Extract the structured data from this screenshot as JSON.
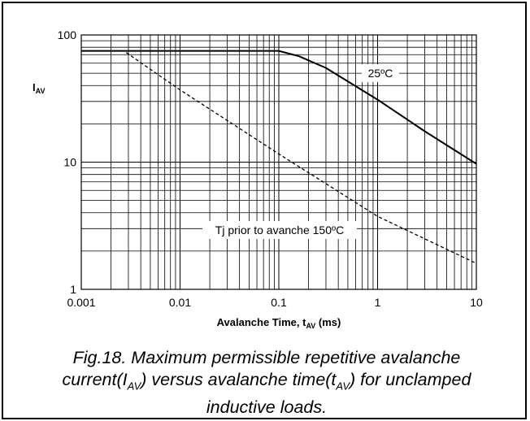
{
  "chart_data": {
    "type": "line",
    "xscale": "log",
    "yscale": "log",
    "xlim": [
      0.001,
      10
    ],
    "ylim": [
      1,
      100
    ],
    "grid": true,
    "x_ticks": [
      "0.001",
      "0.01",
      "0.1",
      "1",
      "10"
    ],
    "y_ticks": [
      "1",
      "10",
      "100"
    ],
    "ylabel": "I",
    "ylabel_sub": "AV",
    "xlabel": "Avalanche Time, t",
    "xlabel_sub": "AV",
    "xlabel_unit": " (ms)",
    "series": [
      {
        "name": "25ºC",
        "style": "solid",
        "points": [
          [
            0.001,
            75
          ],
          [
            0.1,
            75
          ],
          [
            0.16,
            68
          ],
          [
            0.3,
            55
          ],
          [
            1,
            31
          ],
          [
            3,
            17.5
          ],
          [
            10,
            9.7
          ]
        ]
      },
      {
        "name": "Tj prior to avanche 150ºC",
        "style": "dashed",
        "points": [
          [
            0.001,
            75
          ],
          [
            0.0027,
            75
          ],
          [
            0.01,
            37
          ],
          [
            0.1,
            11.6
          ],
          [
            1,
            3.75
          ],
          [
            10,
            1.6
          ]
        ]
      }
    ]
  },
  "caption": {
    "line1": "Fig.18.   Maximum permissible repetitive avalanche",
    "line2_a": "current(I",
    "line2_sub1": "AV",
    "line2_b": ") versus avalanche time(t",
    "line2_sub2": "AV",
    "line2_c": ") for unclamped",
    "line3": "inductive loads."
  }
}
